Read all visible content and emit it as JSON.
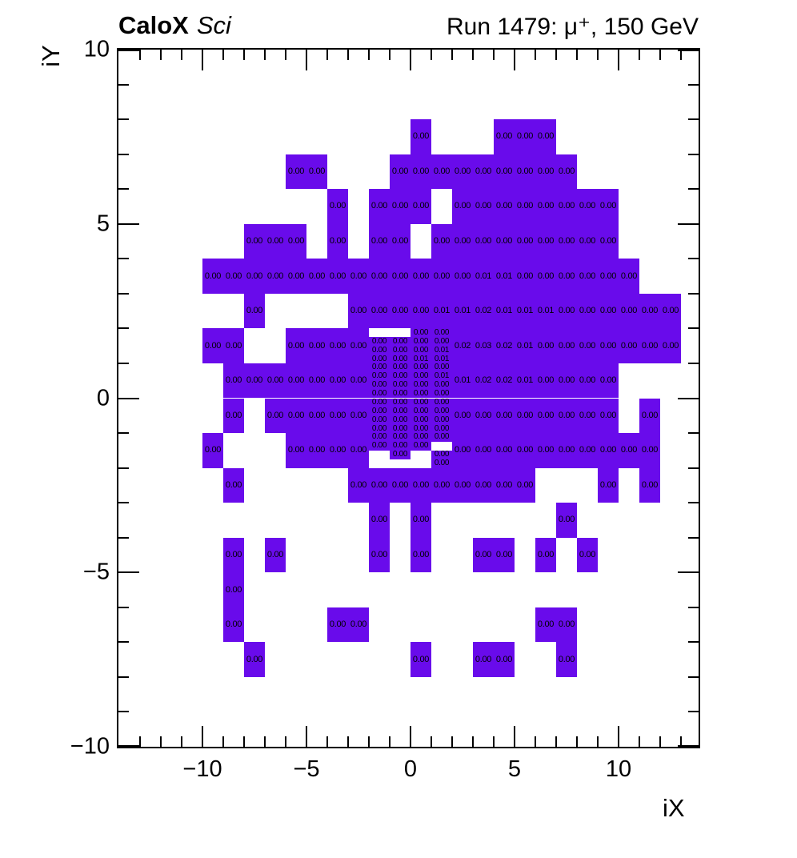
{
  "header": {
    "brand": "CaloX",
    "brand_sub": "Sci",
    "run_title": "Run 1479:  μ⁺, 150 GeV"
  },
  "axes": {
    "x_label": "iX",
    "y_label": "iY",
    "x_range": [
      -14,
      13.9
    ],
    "y_range": [
      -10,
      10
    ],
    "x_ticks": [
      {
        "v": -10,
        "label": "−10"
      },
      {
        "v": -5,
        "label": "−5"
      },
      {
        "v": 0,
        "label": "0"
      },
      {
        "v": 5,
        "label": "5"
      },
      {
        "v": 10,
        "label": "10"
      }
    ],
    "y_ticks": [
      {
        "v": 10,
        "label": "10"
      },
      {
        "v": 5,
        "label": "5"
      },
      {
        "v": 0,
        "label": "0"
      },
      {
        "v": -5,
        "label": "−5"
      },
      {
        "v": -10,
        "label": "−10"
      }
    ]
  },
  "colors": {
    "cell_fill": "#690BEB",
    "frame": "#000000",
    "text": "#000000",
    "background": "#ffffff"
  },
  "chart_data": {
    "type": "heatmap",
    "title": "CaloX Sci — Run 1479: μ⁺, 150 GeV",
    "xlabel": "iX",
    "ylabel": "iY",
    "x_range": [
      -14,
      13.9
    ],
    "y_range": [
      -10,
      10
    ],
    "coarse_bin": {
      "dx": 1,
      "dy": 1
    },
    "rows": [
      {
        "iy": 7,
        "segments": [
          {
            "start": 0,
            "values": [
              "0.00"
            ]
          },
          {
            "start": 4,
            "values": [
              "0.00",
              "0.00",
              "0.00"
            ]
          }
        ]
      },
      {
        "iy": 6,
        "segments": [
          {
            "start": -6,
            "values": [
              "0.00",
              "0.00"
            ]
          },
          {
            "start": -1,
            "values": [
              "0.00",
              "0.00",
              "0.00",
              "0.00",
              "0.00",
              "0.00",
              "0.00",
              "0.00",
              "0.00"
            ]
          }
        ]
      },
      {
        "iy": 5,
        "segments": [
          {
            "start": -4,
            "values": [
              "0.00"
            ]
          },
          {
            "start": -2,
            "values": [
              "0.00",
              "0.00",
              "0.00"
            ]
          },
          {
            "start": 2,
            "values": [
              "0.00",
              "0.00",
              "0.00",
              "0.00",
              "0.00",
              "0.00",
              "0.00",
              "0.00"
            ]
          }
        ]
      },
      {
        "iy": 4,
        "segments": [
          {
            "start": -8,
            "values": [
              "0.00",
              "0.00",
              "0.00"
            ]
          },
          {
            "start": -4,
            "values": [
              "0.00"
            ]
          },
          {
            "start": -2,
            "values": [
              "0.00",
              "0.00"
            ]
          },
          {
            "start": 1,
            "values": [
              "0.00",
              "0.00",
              "0.00",
              "0.00",
              "0.00",
              "0.00",
              "0.00",
              "0.00",
              "0.00"
            ]
          }
        ]
      },
      {
        "iy": 3,
        "segments": [
          {
            "start": -10,
            "values": [
              "0.00",
              "0.00",
              "0.00",
              "0.00",
              "0.00",
              "0.00",
              "0.00",
              "0.00",
              "0.00",
              "0.00",
              "0.00",
              "0.00",
              "0.00",
              "0.01",
              "0.01",
              "0.00",
              "0.00",
              "0.00",
              "0.00",
              "0.00",
              "0.00"
            ]
          }
        ]
      },
      {
        "iy": 2,
        "segments": [
          {
            "start": -8,
            "values": [
              "0.00"
            ]
          },
          {
            "start": -3,
            "values": [
              "0.00",
              "0.00",
              "0.00",
              "0.00",
              "0.01",
              "0.01",
              "0.02",
              "0.01",
              "0.01",
              "0.01",
              "0.00",
              "0.00",
              "0.00",
              "0.00",
              "0.00",
              "0.00"
            ]
          }
        ]
      },
      {
        "iy": 1,
        "segments": [
          {
            "start": -10,
            "values": [
              "0.00",
              "0.00"
            ]
          },
          {
            "start": -6,
            "values": [
              "0.00",
              "0.00",
              "0.00",
              "0.00"
            ]
          },
          {
            "start": 2,
            "values": [
              "0.02",
              "0.03",
              "0.02",
              "0.01",
              "0.00",
              "0.00",
              "0.00",
              "0.00",
              "0.00",
              "0.00",
              "0.00"
            ]
          }
        ]
      },
      {
        "iy": 0,
        "segments": [
          {
            "start": -9,
            "values": [
              "0.00",
              "0.00",
              "0.00",
              "0.00",
              "0.00",
              "0.00",
              "0.00"
            ]
          },
          {
            "start": 2,
            "values": [
              "0.01",
              "0.02",
              "0.02",
              "0.01",
              "0.00",
              "0.00",
              "0.00",
              "0.00"
            ]
          }
        ]
      },
      {
        "iy": -1,
        "segments": [
          {
            "start": -9,
            "values": [
              "0.00"
            ]
          },
          {
            "start": -7,
            "values": [
              "0.00",
              "0.00",
              "0.00",
              "0.00",
              "0.00"
            ]
          },
          {
            "start": 2,
            "values": [
              "0.00",
              "0.00",
              "0.00",
              "0.00",
              "0.00",
              "0.00",
              "0.00",
              "0.00"
            ]
          },
          {
            "start": 11,
            "values": [
              "0.00"
            ]
          }
        ]
      },
      {
        "iy": -2,
        "segments": [
          {
            "start": -10,
            "values": [
              "0.00"
            ]
          },
          {
            "start": -6,
            "values": [
              "0.00",
              "0.00",
              "0.00",
              "0.00"
            ]
          },
          {
            "start": 2,
            "values": [
              "0.00",
              "0.00",
              "0.00",
              "0.00",
              "0.00",
              "0.00",
              "0.00",
              "0.00",
              "0.00",
              "0.00"
            ]
          }
        ]
      },
      {
        "iy": -3,
        "segments": [
          {
            "start": -9,
            "values": [
              "0.00"
            ]
          },
          {
            "start": -3,
            "values": [
              "0.00",
              "0.00",
              "0.00",
              "0.00",
              "0.00",
              "0.00",
              "0.00",
              "0.00",
              "0.00"
            ]
          },
          {
            "start": 9,
            "values": [
              "0.00"
            ]
          },
          {
            "start": 11,
            "values": [
              "0.00"
            ]
          }
        ]
      },
      {
        "iy": -4,
        "segments": [
          {
            "start": -2,
            "values": [
              "0.00"
            ]
          },
          {
            "start": 0,
            "values": [
              "0.00"
            ]
          },
          {
            "start": 7,
            "values": [
              "0.00"
            ]
          }
        ]
      },
      {
        "iy": -5,
        "segments": [
          {
            "start": -9,
            "values": [
              "0.00"
            ]
          },
          {
            "start": -7,
            "values": [
              "0.00"
            ]
          },
          {
            "start": -2,
            "values": [
              "0.00"
            ]
          },
          {
            "start": 0,
            "values": [
              "0.00"
            ]
          },
          {
            "start": 3,
            "values": [
              "0.00",
              "0.00"
            ]
          },
          {
            "start": 6,
            "values": [
              "0.00"
            ]
          },
          {
            "start": 8,
            "values": [
              "0.00"
            ]
          }
        ]
      },
      {
        "iy": -6,
        "segments": [
          {
            "start": -9,
            "values": [
              "0.00"
            ]
          }
        ]
      },
      {
        "iy": -7,
        "segments": [
          {
            "start": -9,
            "values": [
              "0.00"
            ]
          },
          {
            "start": -4,
            "values": [
              "0.00",
              "0.00"
            ]
          },
          {
            "start": 6,
            "values": [
              "0.00",
              "0.00"
            ]
          }
        ]
      },
      {
        "iy": -8,
        "segments": [
          {
            "start": -8,
            "values": [
              "0.00"
            ]
          },
          {
            "start": 0,
            "values": [
              "0.00"
            ]
          },
          {
            "start": 3,
            "values": [
              "0.00",
              "0.00"
            ]
          },
          {
            "start": 7,
            "values": [
              "0.00"
            ]
          }
        ]
      }
    ],
    "fine_overlay": {
      "description": "fine-binned central region, 1.0 wide x 0.25 tall bins",
      "ix_cols": [
        -2,
        -1,
        0,
        1
      ],
      "iy_top": 2.0,
      "row_height": 0.25,
      "rows": [
        [
          null,
          null,
          "0.00",
          "0.00"
        ],
        [
          "0.00",
          "0.00",
          "0.00",
          "0.00"
        ],
        [
          "0.00",
          "0.00",
          "0.00",
          "0.01"
        ],
        [
          "0.00",
          "0.00",
          "0.01",
          "0.01"
        ],
        [
          "0.00",
          "0.00",
          "0.00",
          "0.00"
        ],
        [
          "0.00",
          "0.00",
          "0.00",
          "0.01"
        ],
        [
          "0.00",
          "0.00",
          "0.00",
          "0.00"
        ],
        [
          "0.00",
          "0.00",
          "0.00",
          "0.00"
        ],
        [
          "0.00",
          "0.00",
          "0.00",
          "0.00"
        ],
        [
          "0.00",
          "0.00",
          "0.00",
          "0.00"
        ],
        [
          "0.00",
          "0.00",
          "0.00",
          "0.00"
        ],
        [
          "0.00",
          "0.00",
          "0.00",
          "0.00"
        ],
        [
          "0.00",
          "0.00",
          "0.00",
          "0.00"
        ],
        [
          "0.00",
          "0.00",
          "0.00",
          null
        ],
        [
          null,
          "0.00",
          null,
          "0.00"
        ],
        [
          null,
          null,
          null,
          "0.00"
        ]
      ]
    }
  }
}
